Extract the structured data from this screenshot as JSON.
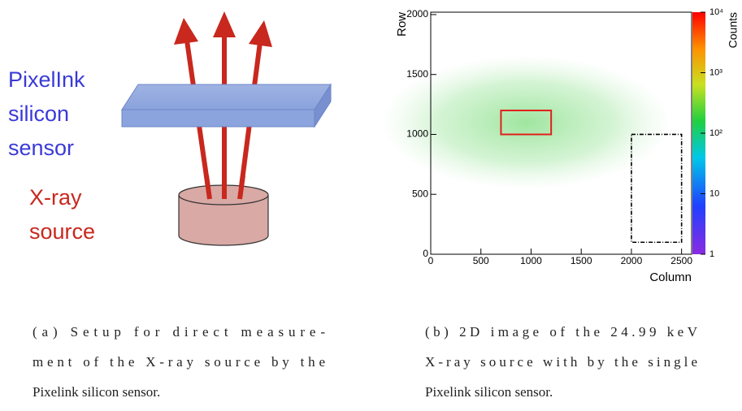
{
  "diagram": {
    "sensor_label": [
      "PixelInk",
      "silicon",
      "sensor"
    ],
    "source_label": [
      "X-ray",
      "source"
    ]
  },
  "captions": [
    {
      "lines": [
        "(a) Setup for direct measure-",
        "ment of the X-ray source by the",
        "Pixelink silicon sensor."
      ]
    },
    {
      "lines": [
        "(b) 2D image of the 24.99 keV",
        "X-ray source with by the single",
        "Pixelink silicon sensor."
      ]
    }
  ],
  "chart_data": {
    "type": "heatmap",
    "xlabel": "Column",
    "ylabel": "Row",
    "colorbar_label": "Counts",
    "xlim": [
      0,
      2600
    ],
    "ylim": [
      0,
      2020
    ],
    "xticks": [
      0,
      500,
      1000,
      1500,
      2000,
      2500
    ],
    "yticks": [
      0,
      500,
      1000,
      1500,
      2000
    ],
    "zlim": [
      1,
      10000
    ],
    "zscale": "log",
    "zticks": [
      1,
      10,
      {
        "value": 100,
        "label": "10²"
      },
      {
        "value": 1000,
        "label": "10³"
      },
      {
        "value": 10000,
        "label": "10⁴"
      }
    ],
    "regions": [
      {
        "x": [
          700,
          1200
        ],
        "y": [
          1000,
          1200
        ],
        "color": "#e0201b",
        "style": "solid"
      },
      {
        "x": [
          2000,
          2500
        ],
        "y": [
          100,
          1000
        ],
        "color": "#000000",
        "style": "dashdot"
      }
    ]
  }
}
